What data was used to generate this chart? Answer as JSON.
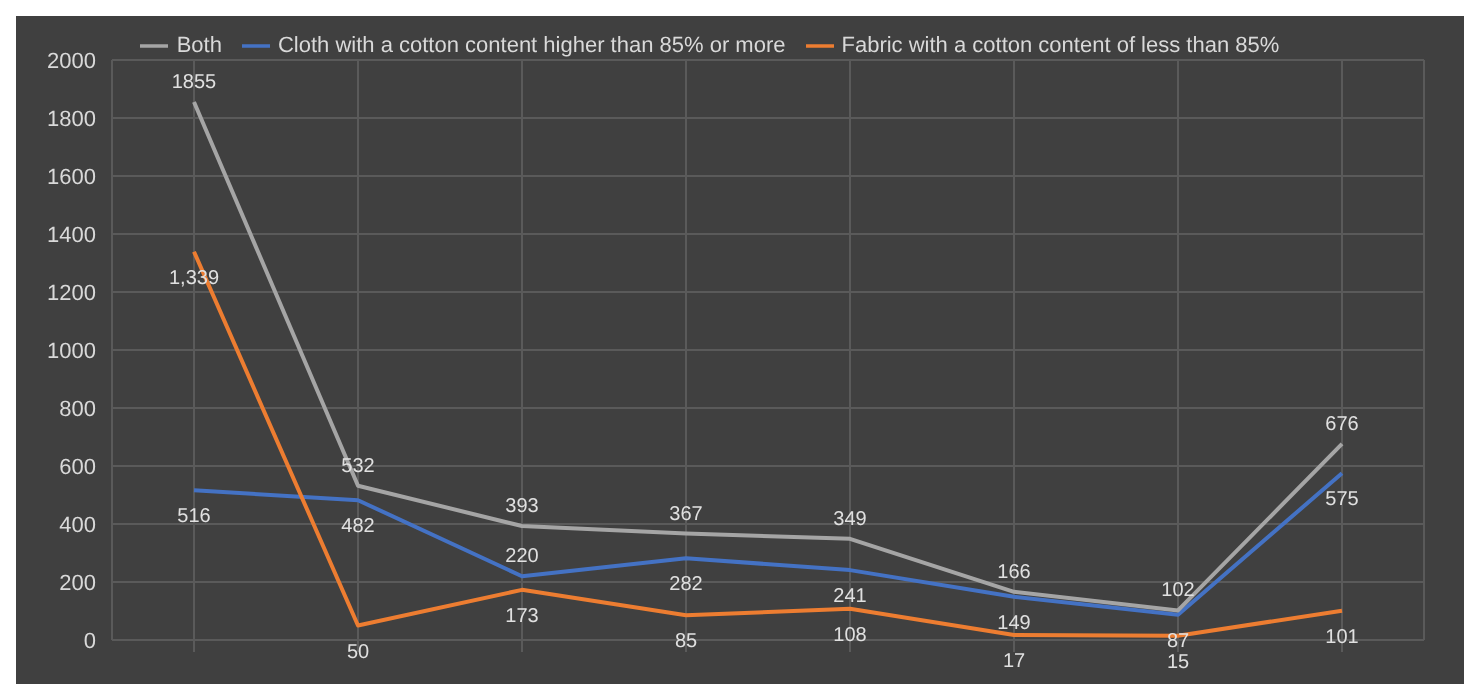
{
  "chart_data": {
    "type": "line",
    "categories": [
      null,
      null,
      null,
      null,
      null,
      null,
      null,
      null
    ],
    "series": [
      {
        "name": "Cloth with a cotton content higher than 85% or more",
        "color": "#4472c4",
        "values": [
          516,
          482,
          220,
          282,
          241,
          149,
          87,
          575
        ],
        "value_labels": [
          "516",
          "482",
          "220",
          "282",
          "241",
          "149",
          "87",
          "575"
        ]
      },
      {
        "name": "Fabric with a cotton content of less than 85%",
        "color": "#ed7d31",
        "values": [
          1339,
          50,
          173,
          85,
          108,
          17,
          15,
          101
        ],
        "value_labels": [
          "1,339",
          "50",
          "173",
          "85",
          "108",
          "17",
          "15",
          "101"
        ]
      },
      {
        "name": "Both",
        "color": "#a5a5a5",
        "values": [
          1855,
          532,
          393,
          367,
          349,
          166,
          102,
          676
        ],
        "value_labels": [
          "1855",
          "532",
          "393",
          "367",
          "349",
          "166",
          "102",
          "676"
        ]
      }
    ],
    "ylim": [
      0,
      2000
    ],
    "yticks": [
      0,
      200,
      400,
      600,
      800,
      1000,
      1200,
      1400,
      1600,
      1800,
      2000
    ],
    "grid": true,
    "legend": "top",
    "marker": "none",
    "line_style": "solid"
  }
}
